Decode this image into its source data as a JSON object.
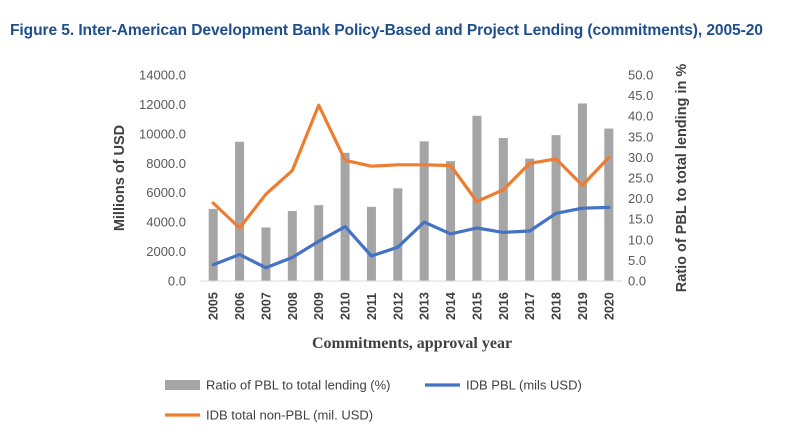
{
  "figure_title": "Figure 5. Inter-American Development Bank Policy-Based and Project Lending (commitments), 2005-20",
  "chart_data": {
    "type": "bar",
    "title": "Figure 5. Inter-American Development Bank Policy-Based and Project Lending (commitments), 2005-20",
    "xlabel": "Commitments, approval year",
    "ylabel": "Millions of USD",
    "y2label": "Ratio of PBL to total lending in %",
    "ylim": [
      0,
      14000
    ],
    "y2lim": [
      0,
      50
    ],
    "y_ticks": [
      "0.0",
      "2000.0",
      "4000.0",
      "6000.0",
      "8000.0",
      "10000.0",
      "12000.0",
      "14000.0"
    ],
    "y2_ticks": [
      "0.0",
      "5.0",
      "10.0",
      "15.0",
      "20.0",
      "25.0",
      "30.0",
      "35.0",
      "40.0",
      "45.0",
      "50.0"
    ],
    "categories": [
      "2005",
      "2006",
      "2007",
      "2008",
      "2009",
      "2010",
      "2011",
      "2012",
      "2013",
      "2014",
      "2015",
      "2016",
      "2017",
      "2018",
      "2019",
      "2020"
    ],
    "grid": false,
    "legend_position": "bottom",
    "series": [
      {
        "name": "Ratio of PBL to total lending (%)",
        "kind": "bar",
        "axis": "right",
        "color": "#a5a5a5",
        "values": [
          17.5,
          33.8,
          13.0,
          17.0,
          18.4,
          31.1,
          18.0,
          22.5,
          33.9,
          29.1,
          40.1,
          34.7,
          29.7,
          35.4,
          43.1,
          37.0
        ]
      },
      {
        "name": "IDB PBL (mils USD)",
        "kind": "line",
        "axis": "left",
        "color": "#4472c4",
        "values": [
          1100,
          1800,
          900,
          1600,
          2700,
          3700,
          1700,
          2300,
          4000,
          3200,
          3600,
          3300,
          3400,
          4600,
          4950,
          5000
        ]
      },
      {
        "name": "IDB total non-PBL (mil. USD)",
        "kind": "line",
        "axis": "left",
        "color": "#ed7d31",
        "values": [
          5300,
          3600,
          5900,
          7500,
          11950,
          8200,
          7800,
          7900,
          7900,
          7850,
          5400,
          6200,
          8000,
          8300,
          6500,
          8400
        ]
      }
    ]
  }
}
